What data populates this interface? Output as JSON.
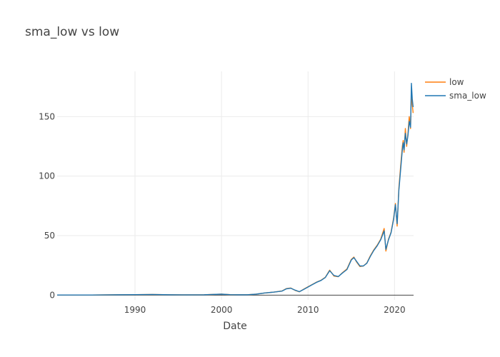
{
  "chart_data": {
    "type": "line",
    "title": "sma_low vs low",
    "xlabel": "Date",
    "ylabel": "",
    "xlim": [
      1981.0,
      2022.2
    ],
    "ylim": [
      -4,
      188
    ],
    "x_ticks": [
      1990,
      2000,
      2010,
      2020
    ],
    "y_ticks": [
      0,
      50,
      100,
      150
    ],
    "grid": true,
    "legend_position": "top-right",
    "colors": {
      "low": "#ff7f0e",
      "sma_low": "#1f77b4"
    },
    "series": [
      {
        "name": "low",
        "x": [
          1981.0,
          1985.0,
          1988.0,
          1990.0,
          1992.0,
          1994.0,
          1996.0,
          1998.0,
          2000.0,
          2001.0,
          2002.0,
          2003.0,
          2004.0,
          2005.0,
          2006.0,
          2007.0,
          2007.5,
          2008.0,
          2008.5,
          2009.0,
          2009.5,
          2010.0,
          2010.5,
          2011.0,
          2011.5,
          2012.0,
          2012.5,
          2013.0,
          2013.5,
          2014.0,
          2014.5,
          2015.0,
          2015.3,
          2015.6,
          2016.0,
          2016.4,
          2016.8,
          2017.2,
          2017.6,
          2018.0,
          2018.4,
          2018.8,
          2019.0,
          2019.3,
          2019.6,
          2019.9,
          2020.1,
          2020.3,
          2020.5,
          2020.7,
          2020.9,
          2021.0,
          2021.1,
          2021.25,
          2021.4,
          2021.55,
          2021.7,
          2021.85,
          2021.95,
          2022.05,
          2022.15
        ],
        "y": [
          0.1,
          0.1,
          0.3,
          0.4,
          0.5,
          0.3,
          0.2,
          0.3,
          0.8,
          0.4,
          0.3,
          0.3,
          0.8,
          1.8,
          2.5,
          3.5,
          5.5,
          6.0,
          4.0,
          2.8,
          5.0,
          7.0,
          9.0,
          11.0,
          12.5,
          15.0,
          21.0,
          16.0,
          15.5,
          19.0,
          22.0,
          30.0,
          32.0,
          28.0,
          24.0,
          24.5,
          27.0,
          33.0,
          38.0,
          42.0,
          47.0,
          56.0,
          37.0,
          47.0,
          53.0,
          65.0,
          77.0,
          58.0,
          90.0,
          108.0,
          125.0,
          130.0,
          120.0,
          140.0,
          125.0,
          136.0,
          150.0,
          140.0,
          172.0,
          160.0,
          153.0
        ]
      },
      {
        "name": "sma_low",
        "x": [
          1981.0,
          1985.0,
          1988.0,
          1990.0,
          1992.0,
          1994.0,
          1996.0,
          1998.0,
          2000.0,
          2001.0,
          2002.0,
          2003.0,
          2004.0,
          2005.0,
          2006.0,
          2007.0,
          2007.5,
          2008.0,
          2008.5,
          2009.0,
          2009.5,
          2010.0,
          2010.5,
          2011.0,
          2011.5,
          2012.0,
          2012.5,
          2013.0,
          2013.5,
          2014.0,
          2014.5,
          2015.0,
          2015.3,
          2015.6,
          2016.0,
          2016.4,
          2016.8,
          2017.2,
          2017.6,
          2018.0,
          2018.4,
          2018.8,
          2019.0,
          2019.3,
          2019.6,
          2019.9,
          2020.1,
          2020.3,
          2020.5,
          2020.7,
          2020.9,
          2021.0,
          2021.1,
          2021.25,
          2021.4,
          2021.55,
          2021.7,
          2021.85,
          2021.95,
          2022.05,
          2022.15
        ],
        "y": [
          0.1,
          0.1,
          0.3,
          0.4,
          0.5,
          0.3,
          0.2,
          0.3,
          0.8,
          0.4,
          0.3,
          0.3,
          0.8,
          1.8,
          2.5,
          3.4,
          5.3,
          5.8,
          4.2,
          2.9,
          4.8,
          6.8,
          8.8,
          10.8,
          12.3,
          14.8,
          20.5,
          16.5,
          15.6,
          18.7,
          21.5,
          29.5,
          31.5,
          28.5,
          24.5,
          24.5,
          26.8,
          32.5,
          37.5,
          41.5,
          46.5,
          54.0,
          38.5,
          46.5,
          52.5,
          64.0,
          76.0,
          60.0,
          88.0,
          105.0,
          122.0,
          128.0,
          122.0,
          136.0,
          127.0,
          134.0,
          146.0,
          141.0,
          178.0,
          165.0,
          158.0
        ]
      }
    ]
  }
}
